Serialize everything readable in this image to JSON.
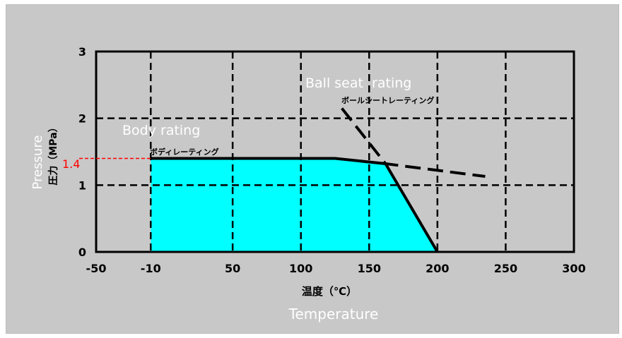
{
  "chart_data": {
    "type": "area",
    "x_range": [
      -50,
      300
    ],
    "y_range": [
      0,
      3
    ],
    "x_ticks": [
      "-50",
      "-10",
      "50",
      "100",
      "150",
      "200",
      "250",
      "300"
    ],
    "x_tick_values": [
      -50,
      -10,
      50,
      100,
      150,
      200,
      250,
      300
    ],
    "y_ticks": [
      "0",
      "1",
      "2",
      "3"
    ],
    "y_tick_values": [
      0,
      1,
      2,
      3
    ],
    "grid": true,
    "xlabel_jp": "温度（℃）",
    "xlabel_en": "Temperature",
    "ylabel_jp": "圧力（MPa）",
    "ylabel_en": "Pressure",
    "marker": {
      "label": "1.4",
      "y": 1.4
    },
    "series": [
      {
        "name": "ボディレーティング",
        "name_en": "Body rating",
        "x": [
          -10,
          125,
          162,
          200
        ],
        "y": [
          1.4,
          1.4,
          1.32,
          0
        ]
      },
      {
        "name": "ボールシートレーティング",
        "name_en": "Ball seat  rating",
        "x": [
          130,
          162,
          235
        ],
        "y": [
          2.15,
          1.32,
          1.13
        ]
      }
    ],
    "colors": {
      "frame": "#c8c8c8",
      "fill": "#00ffff",
      "line": "#000000",
      "marker": "#ff0000",
      "english_label": "#ffffff"
    }
  }
}
